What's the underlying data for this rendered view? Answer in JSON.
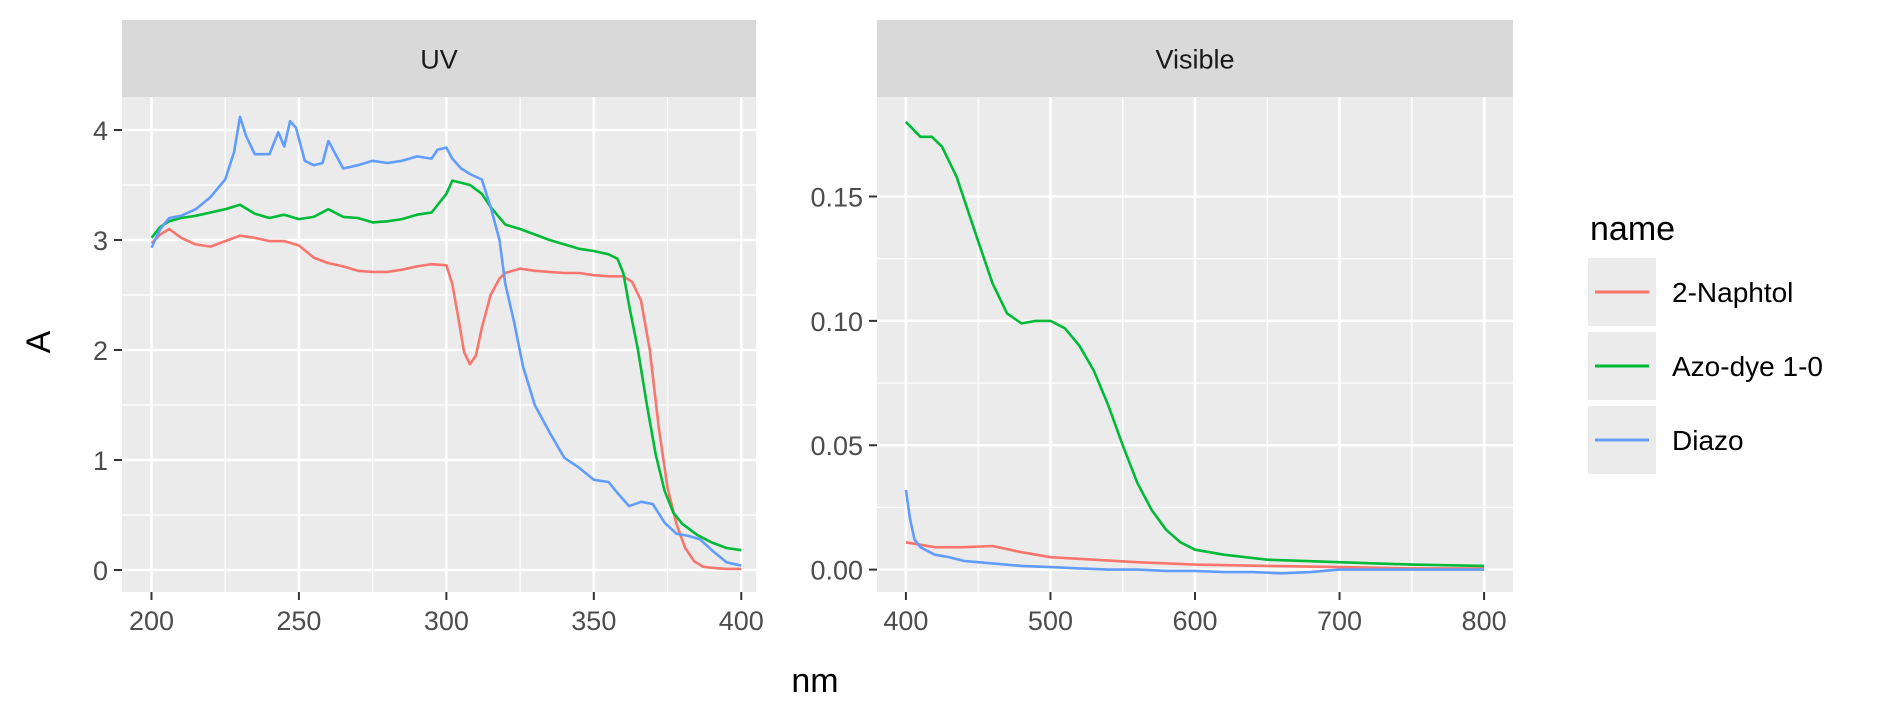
{
  "chart_data": {
    "type": "line",
    "xlabel": "nm",
    "ylabel": "A",
    "legend": {
      "title": "name",
      "position": "right"
    },
    "grid": true,
    "series_names": [
      "2-Naphtol",
      "Azo-dye 1-0",
      "Diazo"
    ],
    "colors": {
      "2-Naphtol": "#F8766D",
      "Azo-dye 1-0": "#00BA38",
      "Diazo": "#619CFF"
    },
    "panels": [
      {
        "strip": "UV",
        "xlim": [
          190,
          405
        ],
        "ylim": [
          -0.2,
          4.3
        ],
        "x_ticks": [
          200,
          250,
          300,
          350,
          400
        ],
        "y_ticks": [
          0,
          1,
          2,
          3,
          4
        ],
        "series": [
          {
            "name": "2-Naphtol",
            "x": [
              200,
              203,
              206,
              210,
              215,
              220,
              225,
              230,
              235,
              240,
              245,
              250,
              255,
              260,
              265,
              270,
              275,
              280,
              285,
              290,
              295,
              300,
              302,
              304,
              306,
              308,
              310,
              312,
              315,
              318,
              320,
              325,
              330,
              335,
              340,
              345,
              350,
              355,
              360,
              363,
              366,
              369,
              372,
              375,
              378,
              381,
              384,
              387,
              390,
              395,
              400
            ],
            "y": [
              2.97,
              3.05,
              3.1,
              3.02,
              2.96,
              2.94,
              2.99,
              3.04,
              3.02,
              2.99,
              2.99,
              2.95,
              2.84,
              2.79,
              2.76,
              2.72,
              2.71,
              2.71,
              2.73,
              2.76,
              2.78,
              2.77,
              2.6,
              2.3,
              1.98,
              1.87,
              1.95,
              2.2,
              2.5,
              2.65,
              2.7,
              2.74,
              2.72,
              2.71,
              2.7,
              2.7,
              2.68,
              2.67,
              2.67,
              2.62,
              2.45,
              2.0,
              1.3,
              0.75,
              0.42,
              0.2,
              0.08,
              0.03,
              0.02,
              0.01,
              0.01
            ]
          },
          {
            "name": "Azo-dye 1-0",
            "x": [
              200,
              203,
              206,
              210,
              215,
              220,
              225,
              230,
              235,
              240,
              245,
              250,
              255,
              260,
              265,
              270,
              275,
              280,
              285,
              290,
              295,
              300,
              302,
              305,
              308,
              312,
              315,
              320,
              325,
              330,
              335,
              340,
              345,
              350,
              355,
              358,
              360,
              362,
              365,
              368,
              371,
              374,
              377,
              380,
              385,
              390,
              395,
              400
            ],
            "y": [
              3.02,
              3.12,
              3.17,
              3.2,
              3.22,
              3.25,
              3.28,
              3.32,
              3.24,
              3.2,
              3.23,
              3.19,
              3.21,
              3.28,
              3.21,
              3.2,
              3.16,
              3.17,
              3.19,
              3.23,
              3.25,
              3.42,
              3.54,
              3.52,
              3.5,
              3.42,
              3.3,
              3.14,
              3.1,
              3.05,
              3.0,
              2.96,
              2.92,
              2.9,
              2.87,
              2.83,
              2.7,
              2.4,
              2.0,
              1.5,
              1.05,
              0.72,
              0.52,
              0.42,
              0.32,
              0.25,
              0.2,
              0.18
            ]
          },
          {
            "name": "Diazo",
            "x": [
              200,
              203,
              206,
              210,
              215,
              220,
              225,
              228,
              230,
              232,
              235,
              240,
              243,
              245,
              247,
              249,
              252,
              255,
              258,
              260,
              262,
              265,
              270,
              275,
              280,
              285,
              290,
              295,
              297,
              300,
              302,
              305,
              308,
              312,
              315,
              318,
              320,
              323,
              326,
              330,
              335,
              340,
              345,
              350,
              355,
              358,
              362,
              366,
              370,
              374,
              378,
              382,
              386,
              390,
              395,
              400
            ],
            "y": [
              2.93,
              3.1,
              3.2,
              3.22,
              3.28,
              3.39,
              3.55,
              3.8,
              4.12,
              3.95,
              3.78,
              3.78,
              3.98,
              3.85,
              4.08,
              4.02,
              3.72,
              3.68,
              3.7,
              3.9,
              3.8,
              3.65,
              3.68,
              3.72,
              3.7,
              3.72,
              3.76,
              3.74,
              3.82,
              3.84,
              3.74,
              3.65,
              3.6,
              3.55,
              3.3,
              3.0,
              2.6,
              2.25,
              1.85,
              1.5,
              1.25,
              1.02,
              0.93,
              0.82,
              0.8,
              0.7,
              0.58,
              0.62,
              0.6,
              0.43,
              0.33,
              0.31,
              0.28,
              0.18,
              0.07,
              0.04
            ]
          }
        ]
      },
      {
        "strip": "Visible",
        "xlim": [
          380,
          820
        ],
        "ylim": [
          -0.009,
          0.19
        ],
        "x_ticks": [
          400,
          500,
          600,
          700,
          800
        ],
        "y_ticks": [
          0.0,
          0.05,
          0.1,
          0.15
        ],
        "y_tick_labels": [
          "0.00",
          "0.05",
          "0.10",
          "0.15"
        ],
        "series": [
          {
            "name": "2-Naphtol",
            "x": [
              400,
              420,
              440,
              460,
              480,
              500,
              530,
              560,
              600,
              650,
              700,
              750,
              800
            ],
            "y": [
              0.011,
              0.009,
              0.009,
              0.0095,
              0.007,
              0.005,
              0.004,
              0.003,
              0.002,
              0.0015,
              0.001,
              0.0005,
              0.0005
            ]
          },
          {
            "name": "Azo-dye 1-0",
            "x": [
              400,
              405,
              410,
              418,
              425,
              435,
              450,
              460,
              470,
              480,
              490,
              500,
              510,
              520,
              530,
              540,
              550,
              560,
              570,
              580,
              590,
              600,
              620,
              650,
              700,
              750,
              800
            ],
            "y": [
              0.18,
              0.177,
              0.174,
              0.174,
              0.17,
              0.158,
              0.132,
              0.115,
              0.103,
              0.099,
              0.1,
              0.1,
              0.097,
              0.09,
              0.08,
              0.066,
              0.05,
              0.035,
              0.024,
              0.016,
              0.011,
              0.008,
              0.006,
              0.004,
              0.003,
              0.002,
              0.0015
            ]
          },
          {
            "name": "Diazo",
            "x": [
              400,
              403,
              406,
              410,
              415,
              420,
              430,
              440,
              460,
              480,
              500,
              520,
              540,
              560,
              580,
              600,
              620,
              640,
              660,
              680,
              700,
              720,
              740,
              760,
              780,
              800
            ],
            "y": [
              0.032,
              0.02,
              0.012,
              0.009,
              0.0075,
              0.006,
              0.005,
              0.0035,
              0.0025,
              0.0015,
              0.001,
              0.0005,
              0,
              0,
              -0.0005,
              -0.0005,
              -0.001,
              -0.001,
              -0.0015,
              -0.001,
              0,
              0,
              0,
              0,
              0,
              0
            ]
          }
        ]
      }
    ]
  }
}
